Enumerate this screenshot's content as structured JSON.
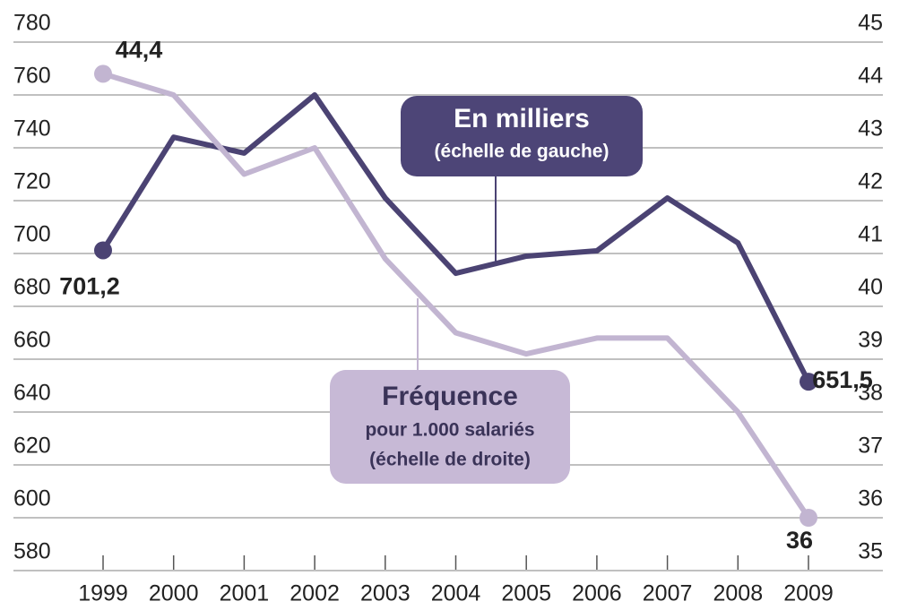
{
  "chart_data": {
    "type": "line",
    "categories": [
      "1999",
      "2000",
      "2001",
      "2002",
      "2003",
      "2004",
      "2005",
      "2006",
      "2007",
      "2008",
      "2009"
    ],
    "ylim": [
      580,
      780
    ],
    "yticks": [
      580,
      600,
      620,
      640,
      660,
      680,
      700,
      720,
      740,
      760,
      780
    ],
    "y2lim": [
      35,
      45
    ],
    "y2ticks": [
      35,
      36,
      37,
      38,
      39,
      40,
      41,
      42,
      43,
      44,
      45
    ],
    "grid": true,
    "series": [
      {
        "name": "En milliers",
        "sublabel": [
          "(échelle de gauche)"
        ],
        "color": "#4b4373",
        "values": [
          701.2,
          744,
          738,
          760,
          721,
          692.5,
          699,
          701,
          721,
          704,
          651.5
        ],
        "value_labels": [
          "701,2",
          null,
          null,
          null,
          null,
          null,
          null,
          null,
          null,
          null,
          "651,5"
        ]
      },
      {
        "name": "Fréquence",
        "sublabel": [
          "pour 1.000 salariés",
          "(échelle de droite)"
        ],
        "color": "#c2b5d1",
        "axis": "y2",
        "values": [
          44.4,
          44,
          42.5,
          43,
          40.9,
          39.5,
          39.1,
          39.4,
          39.4,
          38,
          36
        ],
        "value_labels": [
          "44,4",
          null,
          null,
          null,
          null,
          null,
          null,
          null,
          null,
          null,
          "36"
        ]
      }
    ]
  }
}
